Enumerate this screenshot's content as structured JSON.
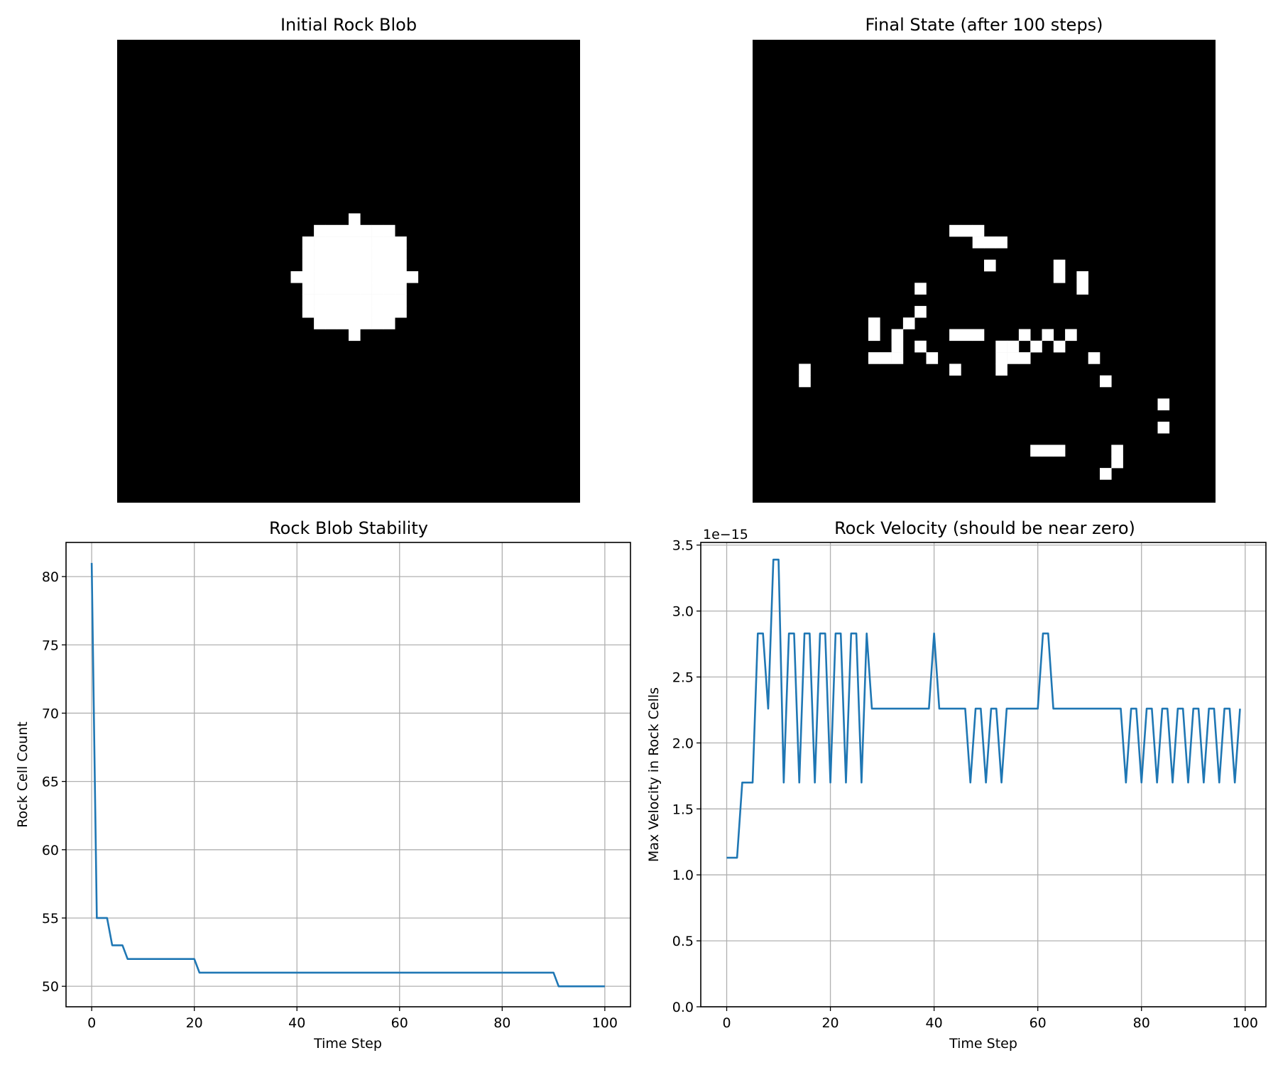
{
  "chart_data": [
    {
      "type": "heatmap",
      "title": "Initial Rock Blob",
      "grid_size": [
        40,
        40
      ],
      "colormap": "gray",
      "cells": [
        [
          20,
          15
        ],
        [
          17,
          16
        ],
        [
          18,
          16
        ],
        [
          19,
          16
        ],
        [
          20,
          16
        ],
        [
          21,
          16
        ],
        [
          22,
          16
        ],
        [
          23,
          16
        ],
        [
          16,
          17
        ],
        [
          17,
          17
        ],
        [
          18,
          17
        ],
        [
          19,
          17
        ],
        [
          20,
          17
        ],
        [
          21,
          17
        ],
        [
          22,
          17
        ],
        [
          23,
          17
        ],
        [
          24,
          17
        ],
        [
          16,
          18
        ],
        [
          17,
          18
        ],
        [
          18,
          18
        ],
        [
          19,
          18
        ],
        [
          20,
          18
        ],
        [
          21,
          18
        ],
        [
          22,
          18
        ],
        [
          23,
          18
        ],
        [
          24,
          18
        ],
        [
          16,
          19
        ],
        [
          17,
          19
        ],
        [
          18,
          19
        ],
        [
          19,
          19
        ],
        [
          20,
          19
        ],
        [
          21,
          19
        ],
        [
          22,
          19
        ],
        [
          23,
          19
        ],
        [
          24,
          19
        ],
        [
          15,
          20
        ],
        [
          16,
          20
        ],
        [
          17,
          20
        ],
        [
          18,
          20
        ],
        [
          19,
          20
        ],
        [
          20,
          20
        ],
        [
          21,
          20
        ],
        [
          22,
          20
        ],
        [
          23,
          20
        ],
        [
          24,
          20
        ],
        [
          25,
          20
        ],
        [
          16,
          21
        ],
        [
          17,
          21
        ],
        [
          18,
          21
        ],
        [
          19,
          21
        ],
        [
          20,
          21
        ],
        [
          21,
          21
        ],
        [
          22,
          21
        ],
        [
          23,
          21
        ],
        [
          24,
          21
        ],
        [
          16,
          22
        ],
        [
          17,
          22
        ],
        [
          18,
          22
        ],
        [
          19,
          22
        ],
        [
          20,
          22
        ],
        [
          21,
          22
        ],
        [
          22,
          22
        ],
        [
          23,
          22
        ],
        [
          24,
          22
        ],
        [
          16,
          23
        ],
        [
          17,
          23
        ],
        [
          18,
          23
        ],
        [
          19,
          23
        ],
        [
          20,
          23
        ],
        [
          21,
          23
        ],
        [
          22,
          23
        ],
        [
          23,
          23
        ],
        [
          24,
          23
        ],
        [
          17,
          24
        ],
        [
          18,
          24
        ],
        [
          19,
          24
        ],
        [
          20,
          24
        ],
        [
          21,
          24
        ],
        [
          22,
          24
        ],
        [
          23,
          24
        ],
        [
          20,
          25
        ]
      ]
    },
    {
      "type": "heatmap",
      "title": "Final State (after 100 steps)",
      "grid_size": [
        40,
        40
      ],
      "colormap": "gray",
      "cells": [
        [
          17,
          16
        ],
        [
          18,
          16
        ],
        [
          19,
          16
        ],
        [
          19,
          17
        ],
        [
          20,
          17
        ],
        [
          21,
          17
        ],
        [
          20,
          19
        ],
        [
          26,
          19
        ],
        [
          26,
          20
        ],
        [
          28,
          20
        ],
        [
          28,
          21
        ],
        [
          14,
          21
        ],
        [
          14,
          23
        ],
        [
          13,
          24
        ],
        [
          10,
          24
        ],
        [
          19,
          25
        ],
        [
          23,
          25
        ],
        [
          25,
          25
        ],
        [
          27,
          25
        ],
        [
          10,
          25
        ],
        [
          12,
          25
        ],
        [
          17,
          25
        ],
        [
          18,
          25
        ],
        [
          24,
          26
        ],
        [
          12,
          26
        ],
        [
          14,
          26
        ],
        [
          21,
          26
        ],
        [
          22,
          26
        ],
        [
          26,
          26
        ],
        [
          10,
          27
        ],
        [
          11,
          27
        ],
        [
          12,
          27
        ],
        [
          15,
          27
        ],
        [
          21,
          27
        ],
        [
          22,
          27
        ],
        [
          23,
          27
        ],
        [
          29,
          27
        ],
        [
          4,
          28
        ],
        [
          17,
          28
        ],
        [
          21,
          28
        ],
        [
          4,
          29
        ],
        [
          30,
          29
        ],
        [
          35,
          31
        ],
        [
          35,
          33
        ],
        [
          24,
          35
        ],
        [
          25,
          35
        ],
        [
          26,
          35
        ],
        [
          31,
          35
        ],
        [
          31,
          36
        ],
        [
          30,
          37
        ]
      ]
    },
    {
      "type": "line",
      "title": "Rock Blob Stability",
      "xlabel": "Time Step",
      "ylabel": "Rock Cell Count",
      "xlim": [
        -5,
        105
      ],
      "ylim": [
        48.5,
        82.5
      ],
      "xticks": [
        0,
        20,
        40,
        60,
        80,
        100
      ],
      "yticks": [
        50,
        55,
        60,
        65,
        70,
        75,
        80
      ],
      "grid": true,
      "color": "#1f77b4",
      "x": [
        0,
        1,
        3,
        4,
        6,
        7,
        20,
        21,
        90,
        91,
        100
      ],
      "y": [
        81,
        55,
        55,
        53,
        53,
        52,
        52,
        51,
        51,
        50,
        50
      ]
    },
    {
      "type": "line",
      "title": "Rock Velocity (should be near zero)",
      "xlabel": "Time Step",
      "ylabel": "Max Velocity in Rock Cells",
      "offset_label": "1e−15",
      "xlim": [
        -5,
        104
      ],
      "ylim": [
        0,
        3.52
      ],
      "xticks": [
        0,
        20,
        40,
        60,
        80,
        100
      ],
      "yticks": [
        0.0,
        0.5,
        1.0,
        1.5,
        2.0,
        2.5,
        3.0,
        3.5
      ],
      "ytick_labels": [
        "0.0",
        "0.5",
        "1.0",
        "1.5",
        "2.0",
        "2.5",
        "3.0",
        "3.5"
      ],
      "grid": true,
      "color": "#1f77b4",
      "x": [
        0,
        1,
        2,
        3,
        4,
        5,
        6,
        7,
        8,
        9,
        10,
        11,
        12,
        13,
        14,
        15,
        16,
        17,
        18,
        19,
        20,
        21,
        22,
        23,
        24,
        25,
        26,
        27,
        28,
        29,
        30,
        31,
        32,
        33,
        34,
        35,
        36,
        37,
        38,
        39,
        40,
        41,
        42,
        43,
        44,
        45,
        46,
        47,
        48,
        49,
        50,
        51,
        52,
        53,
        54,
        55,
        56,
        57,
        58,
        59,
        60,
        61,
        62,
        63,
        64,
        65,
        66,
        67,
        68,
        69,
        70,
        71,
        72,
        73,
        74,
        75,
        76,
        77,
        78,
        79,
        80,
        81,
        82,
        83,
        84,
        85,
        86,
        87,
        88,
        89,
        90,
        91,
        92,
        93,
        94,
        95,
        96,
        97,
        98,
        99
      ],
      "y": [
        1.13,
        1.13,
        1.13,
        1.7,
        1.7,
        1.7,
        2.83,
        2.83,
        2.26,
        3.39,
        3.39,
        1.7,
        2.83,
        2.83,
        1.7,
        2.83,
        2.83,
        1.7,
        2.83,
        2.83,
        1.7,
        2.83,
        2.83,
        1.7,
        2.83,
        2.83,
        1.7,
        2.83,
        2.26,
        2.26,
        2.26,
        2.26,
        2.26,
        2.26,
        2.26,
        2.26,
        2.26,
        2.26,
        2.26,
        2.26,
        2.83,
        2.26,
        2.26,
        2.26,
        2.26,
        2.26,
        2.26,
        1.7,
        2.26,
        2.26,
        1.7,
        2.26,
        2.26,
        1.7,
        2.26,
        2.26,
        2.26,
        2.26,
        2.26,
        2.26,
        2.26,
        2.83,
        2.83,
        2.26,
        2.26,
        2.26,
        2.26,
        2.26,
        2.26,
        2.26,
        2.26,
        2.26,
        2.26,
        2.26,
        2.26,
        2.26,
        2.26,
        1.7,
        2.26,
        2.26,
        1.7,
        2.26,
        2.26,
        1.7,
        2.26,
        2.26,
        1.7,
        2.26,
        2.26,
        1.7,
        2.26,
        2.26,
        1.7,
        2.26,
        2.26,
        1.7,
        2.26,
        2.26,
        1.7,
        2.26
      ]
    }
  ]
}
